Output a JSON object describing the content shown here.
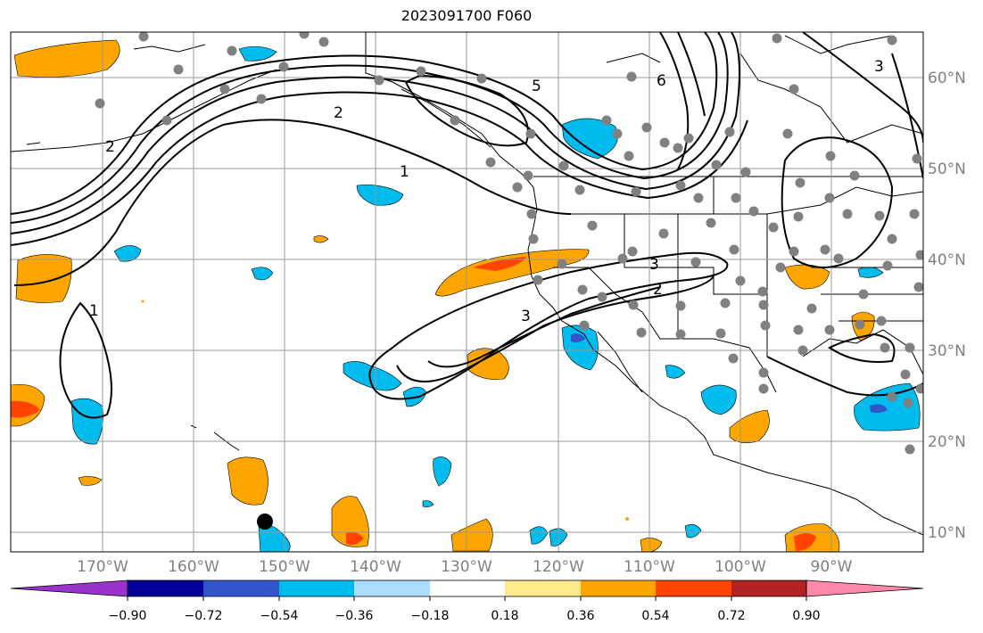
{
  "title": "2023091700 F060",
  "lon_labels": [
    "170°W",
    "160°W",
    "150°W",
    "140°W",
    "130°W",
    "120°W",
    "110°W",
    "100°W",
    "90°W"
  ],
  "lat_labels": [
    "60°N",
    "50°N",
    "40°N",
    "30°N",
    "20°N",
    "10°N"
  ],
  "contour_labels": [
    "2",
    "1",
    "5",
    "6",
    "2",
    "3",
    "3",
    "2",
    "1",
    "3"
  ],
  "colorbar": {
    "colors": [
      "#9933cc",
      "#000099",
      "#3355cc",
      "#00bbee",
      "#aaddff",
      "#ffffff",
      "#ffe98a",
      "#ffa500",
      "#ff4400",
      "#b22222",
      "#ff88aa"
    ],
    "tick_labels": [
      "−0.90",
      "−0.72",
      "−0.54",
      "−0.36",
      "−0.18",
      "0.18",
      "0.36",
      "0.54",
      "0.72",
      "0.90"
    ]
  },
  "colors": {
    "grid": "#999999",
    "tick_label": "#808080",
    "contour": "#000000",
    "dots": "#808080"
  }
}
